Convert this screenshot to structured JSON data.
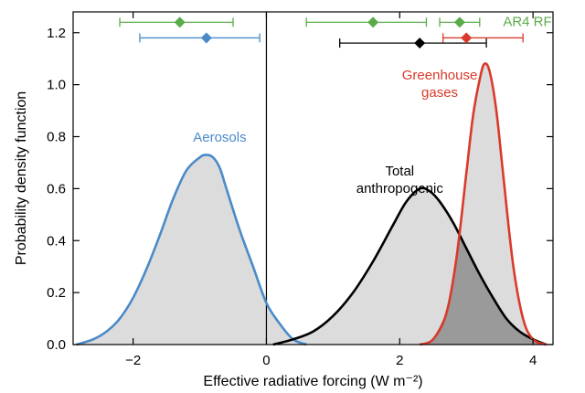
{
  "chart_data": {
    "type": "area",
    "xlabel": "Effective radiative forcing (W m⁻²)",
    "ylabel": "Probability density function",
    "xlim": [
      -2.9,
      4.3
    ],
    "ylim": [
      0,
      1.28
    ],
    "xticks": [
      -2,
      0,
      2,
      4
    ],
    "xtick_labels": [
      "−2",
      "0",
      "2",
      "4"
    ],
    "yticks": [
      0.0,
      0.2,
      0.4,
      0.6,
      0.8,
      1.0,
      1.2
    ],
    "ytick_labels": [
      "0.0",
      "0.2",
      "0.4",
      "0.6",
      "0.8",
      "1.0",
      "1.2"
    ],
    "grid": false,
    "vertical_reference_line_x": 0,
    "series": [
      {
        "name": "Aerosols",
        "color": "#4a8ac8",
        "label_lines": [
          "Aerosols"
        ],
        "x": [
          -2.85,
          -2.6,
          -2.4,
          -2.2,
          -2.0,
          -1.8,
          -1.6,
          -1.4,
          -1.2,
          -1.0,
          -0.9,
          -0.8,
          -0.7,
          -0.6,
          -0.4,
          -0.2,
          0.0,
          0.2,
          0.4,
          0.6
        ],
        "y": [
          0.0,
          0.02,
          0.05,
          0.1,
          0.18,
          0.29,
          0.42,
          0.56,
          0.67,
          0.72,
          0.73,
          0.72,
          0.68,
          0.6,
          0.44,
          0.3,
          0.16,
          0.08,
          0.02,
          0.0
        ]
      },
      {
        "name": "Total anthropogenic",
        "color": "#000000",
        "label_lines": [
          "Total",
          "anthropogenic"
        ],
        "x": [
          0.1,
          0.4,
          0.7,
          1.0,
          1.3,
          1.6,
          1.9,
          2.1,
          2.3,
          2.45,
          2.6,
          2.8,
          3.0,
          3.2,
          3.4,
          3.6,
          3.8,
          4.0,
          4.2
        ],
        "y": [
          0.0,
          0.02,
          0.05,
          0.11,
          0.2,
          0.32,
          0.46,
          0.55,
          0.6,
          0.59,
          0.55,
          0.47,
          0.37,
          0.27,
          0.18,
          0.1,
          0.05,
          0.02,
          0.0
        ]
      },
      {
        "name": "Greenhouse gases",
        "color": "#d93a2b",
        "label_lines": [
          "Greenhouse",
          "gases"
        ],
        "x": [
          2.3,
          2.5,
          2.7,
          2.85,
          3.0,
          3.1,
          3.2,
          3.27,
          3.35,
          3.45,
          3.55,
          3.7,
          3.85,
          4.0,
          4.2
        ],
        "y": [
          0.0,
          0.02,
          0.12,
          0.33,
          0.66,
          0.88,
          1.02,
          1.08,
          1.05,
          0.9,
          0.66,
          0.31,
          0.1,
          0.02,
          0.0
        ]
      }
    ],
    "overlap_shading": {
      "between": [
        "Total anthropogenic",
        "Greenhouse gases"
      ],
      "color": "#9a9a9a"
    },
    "area_fill_color": "#dcdcdc",
    "error_bars": [
      {
        "series": "AR4 RF (aerosols)",
        "color": "#5aab4a",
        "center": -1.3,
        "low": -2.2,
        "high": -0.5,
        "y": 1.24
      },
      {
        "series": "Aerosols",
        "color": "#4a8ac8",
        "center": -0.9,
        "low": -1.9,
        "high": -0.1,
        "y": 1.18
      },
      {
        "series": "AR4 RF (total)",
        "color": "#5aab4a",
        "center": 1.6,
        "low": 0.6,
        "high": 2.4,
        "y": 1.24
      },
      {
        "series": "AR4 RF (GHG)",
        "color": "#5aab4a",
        "center": 2.9,
        "low": 2.6,
        "high": 3.2,
        "y": 1.24
      },
      {
        "series": "Total anthropogenic",
        "color": "#000000",
        "center": 2.3,
        "low": 1.1,
        "high": 3.3,
        "y": 1.16
      },
      {
        "series": "Greenhouse gases",
        "color": "#d93a2b",
        "center": 3.0,
        "low": 2.65,
        "high": 3.85,
        "y": 1.18
      }
    ],
    "annotations": [
      {
        "text": "AR4 RF",
        "color": "#5aab4a"
      }
    ]
  }
}
